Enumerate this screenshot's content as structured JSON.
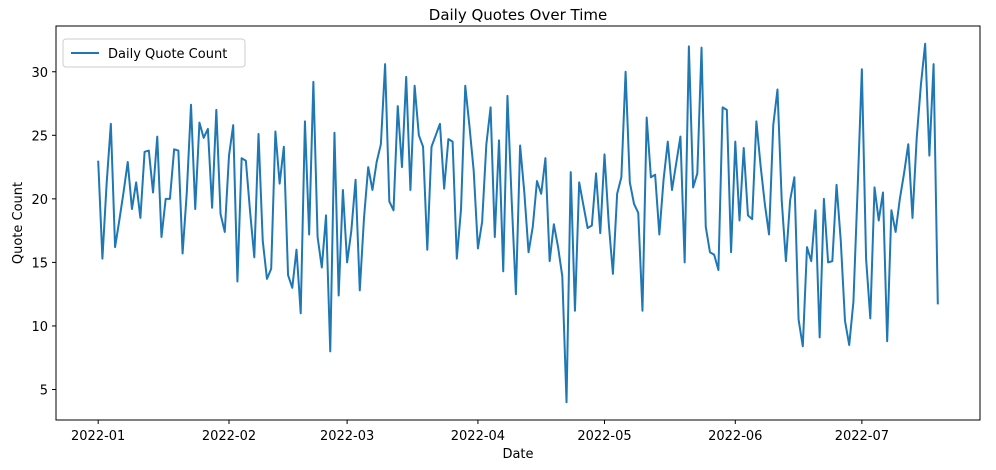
{
  "chart_data": {
    "type": "line",
    "title": "Daily Quotes Over Time",
    "xlabel": "Date",
    "ylabel": "Quote Count",
    "x_start": "2022-01-01",
    "x_end": "2022-07-20",
    "xlim": [
      "2021-12-22",
      "2022-07-29"
    ],
    "ylim": [
      2.6,
      33.6
    ],
    "x_ticks": [
      "2022-01-01",
      "2022-02-01",
      "2022-03-01",
      "2022-04-01",
      "2022-05-01",
      "2022-06-01",
      "2022-07-01"
    ],
    "x_tick_labels": [
      "2022-01",
      "2022-02",
      "2022-03",
      "2022-04",
      "2022-05",
      "2022-06",
      "2022-07"
    ],
    "y_ticks": [
      5,
      10,
      15,
      20,
      25,
      30
    ],
    "y_tick_labels": [
      "5",
      "10",
      "15",
      "20",
      "25",
      "30"
    ],
    "legend": {
      "position": "top-left",
      "entries": [
        "Daily Quote Count"
      ]
    },
    "grid": false,
    "series": [
      {
        "name": "Daily Quote Count",
        "color": "#1f77b4",
        "values": [
          23.0,
          15.3,
          21.2,
          25.9,
          16.2,
          18.3,
          20.5,
          22.9,
          19.2,
          21.3,
          18.5,
          23.7,
          23.8,
          20.5,
          24.9,
          17.0,
          20.0,
          20.0,
          23.9,
          23.8,
          15.7,
          20.5,
          27.4,
          19.2,
          26.0,
          24.8,
          25.5,
          19.3,
          27.0,
          18.8,
          17.4,
          23.4,
          25.8,
          13.5,
          23.2,
          23.0,
          19.0,
          15.4,
          25.1,
          16.7,
          13.7,
          14.5,
          25.3,
          21.2,
          24.1,
          14.0,
          13.0,
          16.0,
          11.0,
          26.1,
          17.2,
          29.2,
          17.0,
          14.6,
          18.7,
          8.0,
          25.2,
          12.4,
          20.7,
          15.0,
          17.5,
          21.5,
          12.8,
          18.5,
          22.5,
          20.7,
          22.9,
          24.3,
          30.6,
          19.8,
          19.1,
          27.3,
          22.5,
          29.6,
          20.7,
          28.9,
          25.0,
          24.1,
          16.0,
          24.1,
          25.0,
          25.9,
          20.8,
          24.7,
          24.5,
          15.3,
          19.2,
          28.9,
          25.7,
          22.2,
          16.1,
          18.2,
          24.3,
          27.2,
          17.0,
          24.6,
          14.3,
          28.1,
          19.9,
          12.5,
          24.2,
          20.5,
          15.8,
          17.8,
          21.4,
          20.4,
          23.2,
          15.1,
          18.0,
          16.2,
          13.9,
          4.0,
          22.1,
          11.2,
          21.3,
          19.5,
          17.7,
          17.9,
          22.0,
          17.3,
          23.5,
          18.1,
          14.1,
          20.4,
          21.7,
          30.0,
          21.3,
          19.6,
          18.9,
          11.2,
          26.4,
          21.7,
          21.9,
          17.2,
          21.5,
          24.5,
          20.7,
          22.8,
          24.9,
          15.0,
          32.0,
          20.9,
          22.0,
          31.9,
          17.8,
          15.8,
          15.6,
          14.4,
          27.2,
          27.0,
          15.8,
          24.5,
          18.3,
          24.0,
          18.7,
          18.4,
          26.1,
          22.6,
          19.6,
          17.2,
          25.8,
          28.6,
          19.9,
          15.1,
          19.9,
          21.7,
          10.5,
          8.4,
          16.2,
          15.1,
          19.1,
          9.1,
          20.0,
          15.0,
          15.1,
          21.1,
          16.7,
          10.4,
          8.5,
          11.9,
          20.8,
          30.2,
          15.3,
          10.6,
          20.9,
          18.3,
          20.5,
          8.8,
          19.1,
          17.4,
          20.0,
          22.0,
          24.3,
          18.5,
          24.8,
          29.0,
          32.2,
          23.4,
          30.6,
          11.7
        ]
      }
    ]
  }
}
